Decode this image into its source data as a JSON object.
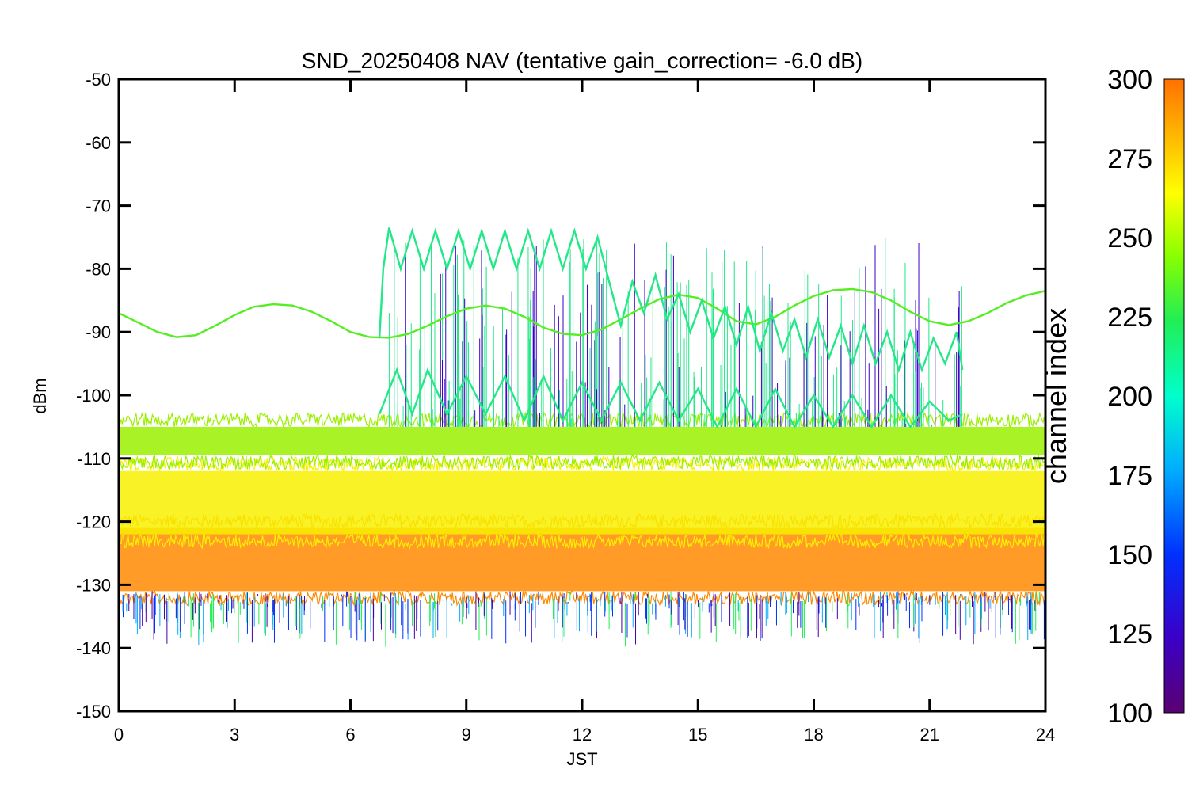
{
  "chart_data": {
    "type": "line",
    "title": "SND_20250408 NAV (tentative gain_correction= -6.0 dB)",
    "xlabel": "JST",
    "ylabel": "dBm",
    "xlim": [
      0,
      24
    ],
    "ylim": [
      -150,
      -50
    ],
    "x_ticks": [
      "0",
      "3",
      "6",
      "9",
      "12",
      "15",
      "18",
      "21",
      "24"
    ],
    "y_ticks": [
      "-50",
      "-60",
      "-70",
      "-80",
      "-90",
      "-100",
      "-110",
      "-120",
      "-130",
      "-140",
      "-150"
    ],
    "grid": false,
    "colorbar": {
      "label": "channel index",
      "range": [
        100,
        300
      ],
      "ticks": [
        "300",
        "275",
        "250",
        "225",
        "200",
        "175",
        "150",
        "125",
        "100"
      ],
      "colormap": "rainbow"
    },
    "series": [
      {
        "channel_index": 245,
        "color": "#55ee22",
        "x": [
          0,
          0.5,
          1,
          1.5,
          2,
          2.5,
          3,
          3.5,
          4,
          4.5,
          5,
          5.5,
          6,
          6.5,
          7,
          7.5,
          8,
          8.5,
          9,
          9.5,
          10,
          10.5,
          11,
          11.5,
          12,
          12.5,
          13,
          13.5,
          14,
          14.5,
          15,
          15.5,
          16,
          16.5,
          17,
          17.5,
          18,
          18.5,
          19,
          19.5,
          20,
          20.5,
          21,
          21.5,
          22,
          22.5,
          23,
          23.5,
          24
        ],
        "y": [
          -87,
          -88.5,
          -90,
          -90.8,
          -90.5,
          -89,
          -87.3,
          -86,
          -85.6,
          -85.8,
          -86.8,
          -88.3,
          -90,
          -90.8,
          -90.9,
          -90.3,
          -89,
          -87.5,
          -86.3,
          -85.8,
          -86.3,
          -87.6,
          -89.3,
          -90.3,
          -90.5,
          -89.6,
          -88,
          -86.3,
          -84.8,
          -84.1,
          -84.6,
          -86.3,
          -88.3,
          -88.8,
          -87.6,
          -85.8,
          -84.3,
          -83.4,
          -83.2,
          -83.7,
          -85,
          -86.8,
          -88.3,
          -88.9,
          -88.3,
          -87,
          -85.4,
          -84.2,
          -83.5
        ]
      },
      {
        "channel_index": 215,
        "color": "#22e888",
        "x": [
          6.75,
          6.85,
          7.0,
          7.3,
          7.6,
          7.9,
          8.2,
          8.5,
          8.8,
          9.1,
          9.4,
          9.7,
          10.0,
          10.3,
          10.6,
          10.9,
          11.2,
          11.5,
          11.8,
          12.1,
          12.4,
          12.7,
          13.0,
          13.3,
          13.6,
          13.9,
          14.2,
          14.5,
          14.8,
          15.1,
          15.4,
          15.7,
          16.0,
          16.3,
          16.6,
          16.9,
          17.2,
          17.5,
          17.8,
          18.1,
          18.4,
          18.7,
          19.0,
          19.3,
          19.6,
          19.9,
          20.2,
          20.5,
          20.8,
          21.1,
          21.4,
          21.7,
          21.85
        ],
        "y": [
          -91,
          -80,
          -73.5,
          -80,
          -74,
          -80,
          -74,
          -80,
          -74,
          -80,
          -74,
          -80,
          -74,
          -80,
          -74,
          -80,
          -74,
          -80,
          -74,
          -80,
          -75,
          -82,
          -89,
          -82,
          -87,
          -81,
          -88,
          -84,
          -90,
          -85,
          -91,
          -86,
          -92,
          -86,
          -93,
          -87,
          -93,
          -88,
          -94,
          -88,
          -94,
          -89,
          -95,
          -89,
          -95,
          -90,
          -96,
          -90,
          -96,
          -91,
          -95,
          -90,
          -96
        ]
      },
      {
        "channel_index": 215,
        "color": "#22e888",
        "x": [
          6.75,
          7.2,
          7.6,
          8.0,
          8.5,
          9.0,
          9.5,
          10.0,
          10.5,
          11.0,
          11.5,
          12.0,
          12.5,
          13.0,
          13.5,
          14.0,
          14.5,
          15.0,
          15.5,
          16.0,
          16.5,
          17.0,
          17.5,
          18.0,
          18.5,
          19.0,
          19.5,
          20.0,
          20.5,
          21.0,
          21.5,
          21.85
        ],
        "y": [
          -103,
          -96,
          -103,
          -96,
          -103,
          -97,
          -103,
          -97,
          -104,
          -97,
          -104,
          -98,
          -104,
          -98,
          -104,
          -98,
          -104,
          -99,
          -105,
          -99,
          -105,
          -99,
          -105,
          -100,
          -105,
          -100,
          -105,
          -100,
          -105,
          -101,
          -104,
          -103
        ]
      },
      {
        "channel_index": 255,
        "color": "#99f000",
        "band": [
          -109.5,
          -105
        ],
        "x": [
          0,
          24
        ],
        "y": [
          -107.5,
          -107.5
        ]
      },
      {
        "channel_index": 270,
        "color": "#f8f000",
        "band": [
          -122,
          -112
        ],
        "x": [
          0,
          24
        ],
        "y": [
          -117,
          -117
        ]
      },
      {
        "channel_index": 290,
        "color": "#ff8a00",
        "band": [
          -131,
          -121
        ],
        "x": [
          0,
          24
        ],
        "y": [
          -126,
          -126
        ]
      }
    ]
  }
}
